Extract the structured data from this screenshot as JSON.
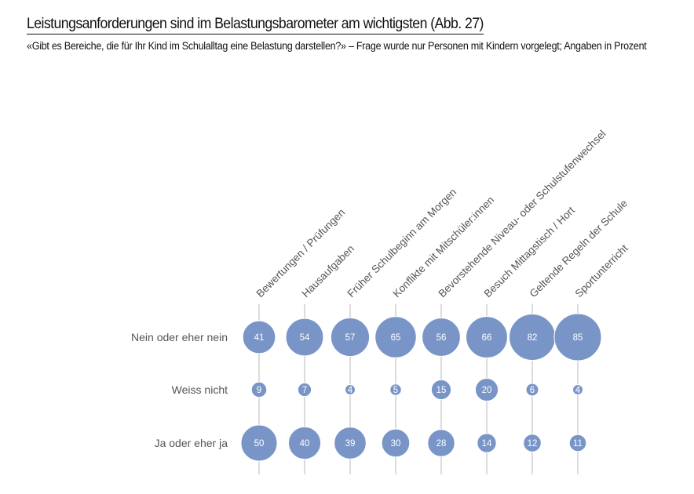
{
  "header": {
    "title": "Leistungsanforderungen sind im Belastungsbarometer am wichtigsten  (Abb. 27)",
    "subtitle": "«Gibt es Bereiche, die für Ihr Kind im Schulalltag eine Belastung darstellen?» – Frage wurde nur Personen mit Kindern vorgelegt; Angaben in Prozent"
  },
  "chart_data": {
    "type": "bubble-matrix",
    "title": "Leistungsanforderungen sind im Belastungsbarometer am wichtigsten  (Abb. 27)",
    "unit": "Prozent",
    "categories": [
      "Bewertungen / Prüfungen",
      "Hausaufgaben",
      "Früher Schulbeginn am Morgen",
      "Konflikte mit Mitschüler:innen",
      "Bevorstehende Niveau- oder Schulstufenwechsel",
      "Besuch Mittagstisch / Hort",
      "Geltende Regeln der Schule",
      "Sportunterricht"
    ],
    "series": [
      {
        "name": "Nein oder eher nein",
        "values": [
          41,
          54,
          57,
          65,
          56,
          66,
          82,
          85
        ]
      },
      {
        "name": "Weiss nicht",
        "values": [
          9,
          7,
          4,
          5,
          15,
          20,
          6,
          4
        ]
      },
      {
        "name": "Ja oder eher ja",
        "values": [
          50,
          40,
          39,
          30,
          28,
          14,
          12,
          11
        ]
      }
    ],
    "colors": {
      "bubble": "#7995c8",
      "stem": "#c4c4c4",
      "label": "#555555"
    }
  }
}
